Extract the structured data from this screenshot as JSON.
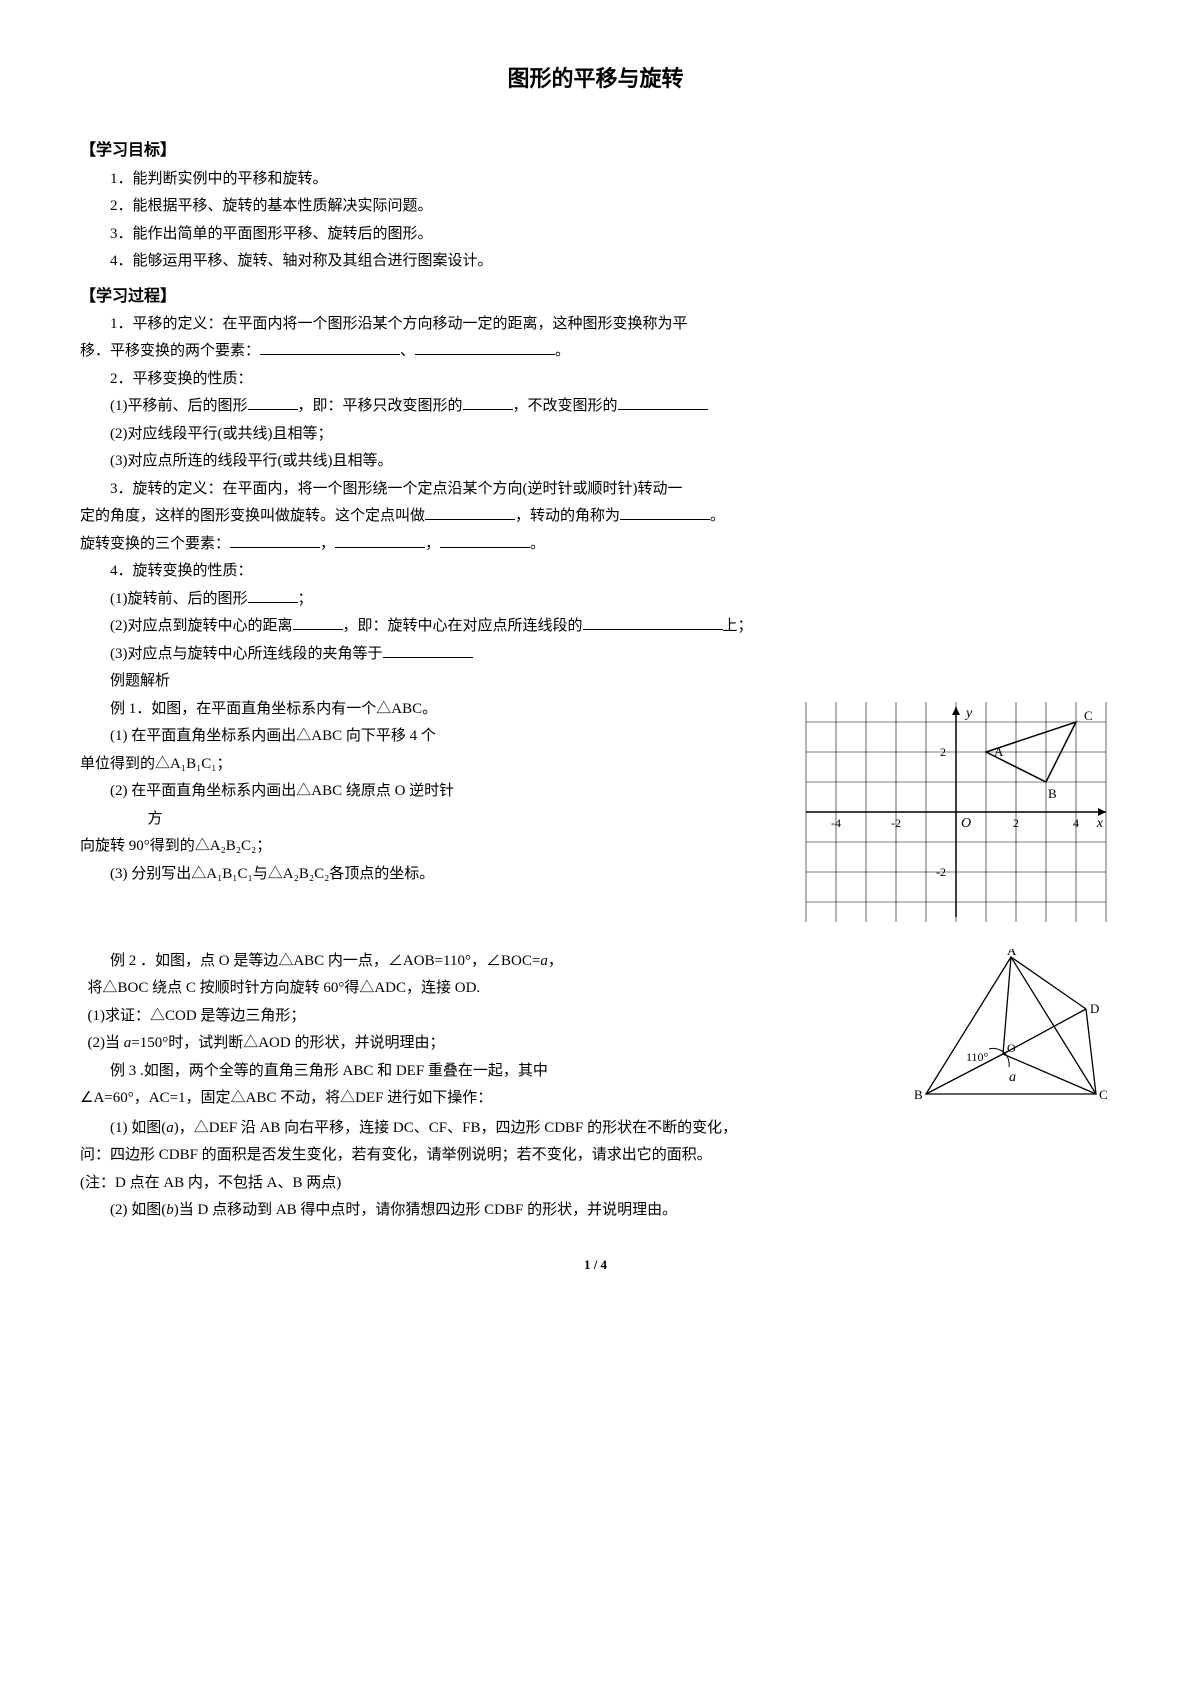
{
  "title": "图形的平移与旋转",
  "s1": {
    "header": "【学习目标】",
    "i1": "1．能判断实例中的平移和旋转。",
    "i2": "2．能根据平移、旋转的基本性质解决实际问题。",
    "i3": "3．能作出简单的平面图形平移、旋转后的图形。",
    "i4": "4．能够运用平移、旋转、轴对称及其组合进行图案设计。"
  },
  "s2": {
    "header": "【学习过程】",
    "p1a": "1．平移的定义：在平面内将一个图形沿某个方向移动一定的距离，这种图形变换称为平",
    "p1b": "移．平移变换的两个要素：",
    "p1c": "、",
    "p1d": "。",
    "p2": "2．平移变换的性质：",
    "p2_1a": "(1)平移前、后的图形",
    "p2_1b": "，即：平移只改变图形的",
    "p2_1c": "，不改变图形的",
    "p2_2": "(2)对应线段平行(或共线)且相等；",
    "p2_3": "(3)对应点所连的线段平行(或共线)且相等。",
    "p3a": "3．旋转的定义：在平面内，将一个图形绕一个定点沿某个方向(逆时针或顺时针)转动一",
    "p3b": "定的角度，这样的图形变换叫做旋转。这个定点叫做",
    "p3c": "，转动的角称为",
    "p3d": "。",
    "p3e": "旋转变换的三个要素：",
    "p3f": "，",
    "p3g": "，",
    "p3h": "。",
    "p4": "4．旋转变换的性质：",
    "p4_1a": "(1)旋转前、后的图形",
    "p4_1b": "；",
    "p4_2a": "(2)对应点到旋转中心的距离",
    "p4_2b": "，即：旋转中心在对应点所连线段的",
    "p4_2c": "上；",
    "p4_3a": "(3)对应点与旋转中心所连线段的夹角等于"
  },
  "ex": {
    "header": "例题解析",
    "e1": "例 1．如图，在平面直角坐标系内有一个△ABC。",
    "e1_1a": "(1) 在平面直角坐标系内画出△ABC 向下平移 4 个",
    "e1_1b": "单位得到的△A₁B₁C₁；",
    "e1_2a": "(2) 在平面直角坐标系内画出△ABC 绕原点 O 逆时针",
    "e1_2b": "方",
    "e1_2c": "向旋转 90°得到的△A₂B₂C₂；",
    "e1_3": "(3) 分别写出△A₁B₁C₁与△A₂B₂C₂各顶点的坐标。",
    "e2a": "例 2 ．如图，点 O 是等边△ABC 内一点，∠AOB=110°，∠BOC=",
    "e2a_it": "a",
    "e2a2": "，",
    "e2b": " 将△BOC 绕点 C 按顺时针方向旋转 60°得△ADC，连接 OD.",
    "e2_1": "(1)求证：△COD 是等边三角形；",
    "e2_2a": "(2)当 ",
    "e2_2it": "a",
    "e2_2b": "=150°时，试判断△AOD 的形状，并说明理由；",
    "e3a": "例 3 .如图，两个全等的直角三角形 ABC 和 DEF 重叠在一起，其中",
    "e3b": "∠A=60°，AC=1，固定△ABC 不动，将△DEF 进行如下操作：",
    "e3_1a": "(1) 如图(",
    "e3_1it": "a",
    "e3_1b": ")，△DEF 沿 AB 向右平移，连接 DC、CF、FB，四边形 CDBF 的形状在不断的变化，",
    "e3_1c": "问：四边形 CDBF 的面积是否发生变化，若有变化，请举例说明；若不变化，请求出它的面积。",
    "e3_1d": "(注：D 点在 AB 内，不包括 A、B 两点)",
    "e3_2a": "(2) 如图(",
    "e3_2it": "b",
    "e3_2b": ")当 D 点移动到 AB 得中点时，请你猜想四边形 CDBF 的形状，并说明理由。"
  },
  "grid": {
    "bg": "#ffffff",
    "gridColor": "#000000",
    "axisColor": "#000000",
    "xRange": [
      -5,
      5
    ],
    "yRange": [
      -5,
      5
    ],
    "xTicks": [
      -4,
      -2,
      2,
      4
    ],
    "yTicks": [
      -4,
      -2,
      2,
      4
    ],
    "xLabel": "x",
    "yLabel": "y",
    "origin": "O",
    "points": {
      "A": [
        1,
        2
      ],
      "B": [
        3,
        1
      ],
      "C": [
        4,
        3
      ]
    },
    "triColor": "#000000"
  },
  "tri": {
    "stroke": "#000000",
    "labels": {
      "A": "A",
      "B": "B",
      "C": "C",
      "D": "D",
      "O": "O"
    },
    "angle": "110°",
    "aLabel": "a"
  },
  "pageNum": "1 / 4"
}
